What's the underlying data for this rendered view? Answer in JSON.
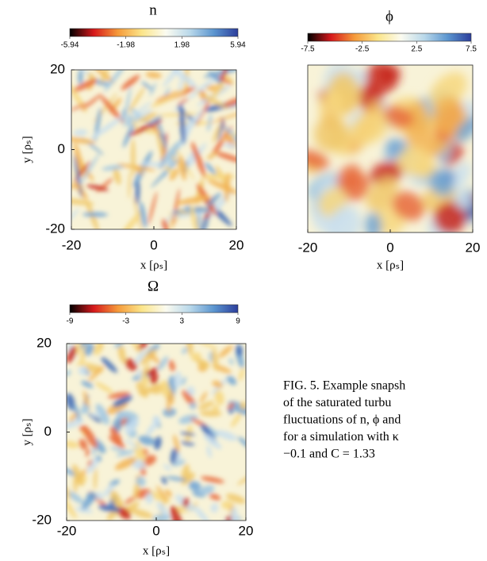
{
  "chart_data": [
    {
      "type": "heatmap",
      "title": "n",
      "xlabel": "x [ρₛ]",
      "ylabel": "y [ρₛ]",
      "colormap": [
        "#000000",
        "#d7191c",
        "#f59a3a",
        "#fbe58a",
        "#fbfbf0",
        "#b9d8ea",
        "#5b95cf",
        "#2c3e9c"
      ],
      "clim": [
        -5.94,
        5.94
      ],
      "cticks": [
        -5.94,
        -1.98,
        1.98,
        5.94
      ],
      "xlim": [
        -20,
        20
      ],
      "ylim": [
        -20,
        20
      ],
      "xticks": [
        -20,
        0,
        20
      ],
      "yticks": [
        -20,
        0,
        20
      ]
    },
    {
      "type": "heatmap",
      "title": "ϕ",
      "xlabel": "x [ρₛ]",
      "colormap": [
        "#000000",
        "#d7191c",
        "#f59a3a",
        "#fbe58a",
        "#fbfbf0",
        "#b9d8ea",
        "#5b95cf",
        "#2c3e9c"
      ],
      "clim": [
        -7.5,
        7.5
      ],
      "cticks": [
        -7.5,
        -2.5,
        2.5,
        7.5
      ],
      "xlim": [
        -20,
        20
      ],
      "ylim": [
        -20,
        20
      ],
      "xticks": [
        -20,
        0,
        20
      ]
    },
    {
      "type": "heatmap",
      "title": "Ω",
      "xlabel": "x [ρₛ]",
      "ylabel": "y [ρₛ]",
      "colormap": [
        "#000000",
        "#d7191c",
        "#f59a3a",
        "#fbe58a",
        "#fbfbf0",
        "#b9d8ea",
        "#5b95cf",
        "#2c3e9c"
      ],
      "clim": [
        -9,
        9
      ],
      "cticks": [
        -9,
        -3,
        3,
        9
      ],
      "xlim": [
        -20,
        20
      ],
      "ylim": [
        -20,
        20
      ],
      "xticks": [
        -20,
        0,
        20
      ],
      "yticks": [
        -20,
        0,
        20
      ]
    }
  ],
  "caption_lines": [
    "FIG. 5. Example snapsh",
    "of the saturated turbu",
    "fluctuations of n, ϕ and",
    "for a simulation with κ",
    "−0.1 and C = 1.33"
  ]
}
